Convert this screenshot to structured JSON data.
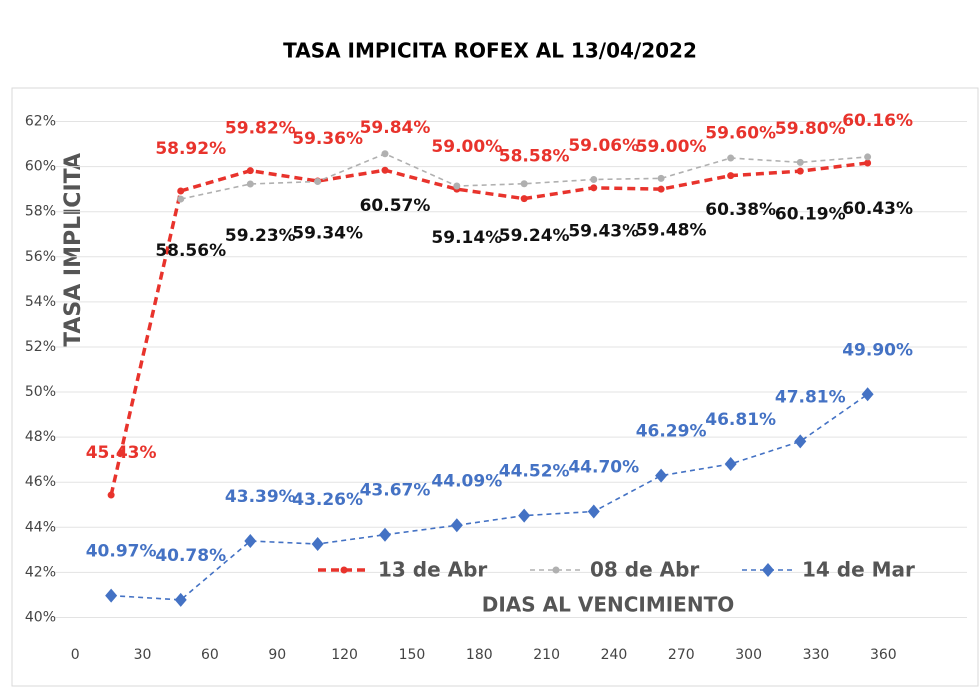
{
  "chart_data": {
    "type": "line",
    "title": "TASA IMPICITA ROFEX AL 13/04/2022",
    "x_label": "DIAS AL VENCIMIENTO",
    "y_label": "TASA IMPLICITA",
    "x": [
      16,
      47,
      78,
      108,
      138,
      170,
      200,
      231,
      261,
      292,
      323,
      353
    ],
    "xlim": [
      -5,
      375
    ],
    "xticks": [
      0,
      30,
      60,
      90,
      120,
      150,
      180,
      210,
      240,
      270,
      300,
      330,
      360
    ],
    "ylim": [
      39,
      63
    ],
    "yticks": [
      {
        "value": 40,
        "label": "40%"
      },
      {
        "value": 42,
        "label": "42%"
      },
      {
        "value": 44,
        "label": "44%"
      },
      {
        "value": 46,
        "label": "46%"
      },
      {
        "value": 48,
        "label": "48%"
      },
      {
        "value": 50,
        "label": "50%"
      },
      {
        "value": 52,
        "label": "52%"
      },
      {
        "value": 54,
        "label": "54%"
      },
      {
        "value": 56,
        "label": "56%"
      },
      {
        "value": 58,
        "label": "58%"
      },
      {
        "value": 60,
        "label": "60%"
      },
      {
        "value": 62,
        "label": "62%"
      }
    ],
    "grid": true,
    "legend": "bottom",
    "series": [
      {
        "name": "13 de Abr",
        "color": "#e8332c",
        "label_color": "#e8332c",
        "marker": "circle",
        "values": [
          45.43,
          58.92,
          59.82,
          59.36,
          59.84,
          59.0,
          58.58,
          59.06,
          59.0,
          59.6,
          59.8,
          60.16
        ],
        "value_labels": [
          "45.43%",
          "58.92%",
          "59.82%",
          "59.36%",
          "59.84%",
          "59.00%",
          "58.58%",
          "59.06%",
          "59.00%",
          "59.60%",
          "59.80%",
          "60.16%"
        ]
      },
      {
        "name": "08 de Abr",
        "color": "#b0b0b0",
        "label_color": "#111111",
        "marker": "circle",
        "values": [
          null,
          58.56,
          59.23,
          59.34,
          60.57,
          59.14,
          59.24,
          59.43,
          59.48,
          60.38,
          60.19,
          60.43
        ],
        "value_labels": [
          null,
          "58.56%",
          "59.23%",
          "59.34%",
          "60.57%",
          "59.14%",
          "59.24%",
          "59.43%",
          "59.48%",
          "60.38%",
          "60.19%",
          "60.43%"
        ]
      },
      {
        "name": "14 de Mar",
        "color": "#4472c4",
        "label_color": "#4472c4",
        "marker": "diamond",
        "values": [
          40.97,
          40.78,
          43.39,
          43.26,
          43.67,
          44.09,
          44.52,
          44.7,
          46.29,
          46.81,
          47.81,
          49.9
        ],
        "value_labels": [
          "40.97%",
          "40.78%",
          "43.39%",
          "43.26%",
          "43.67%",
          "44.09%",
          "44.52%",
          "44.70%",
          "46.29%",
          "46.81%",
          "47.81%",
          "49.90%"
        ]
      }
    ]
  }
}
